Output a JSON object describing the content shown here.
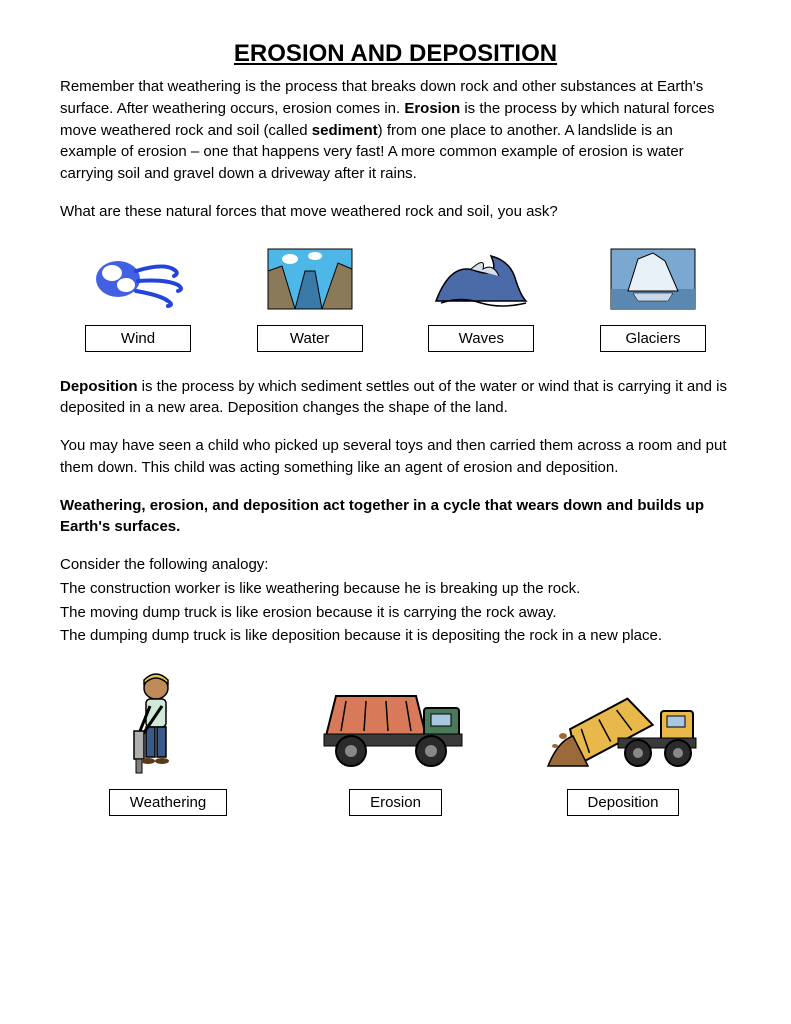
{
  "title": "EROSION AND DEPOSITION",
  "para1_html": "Remember that weathering is the process that breaks down rock and other substances at Earth's surface.  After weathering occurs, erosion comes in.  <strong>Erosion</strong> is the process by which natural forces move weathered rock and soil (called <strong>sediment</strong>) from one place to another.  A landslide is an example of erosion – one that happens very fast!  A more common example of erosion is water carrying soil and gravel down a driveway after it rains.",
  "para2": "What are these natural forces that move weathered rock and soil, you ask?",
  "forces": [
    {
      "label": "Wind",
      "icon": "wind"
    },
    {
      "label": "Water",
      "icon": "water"
    },
    {
      "label": "Waves",
      "icon": "waves"
    },
    {
      "label": "Glaciers",
      "icon": "glaciers"
    }
  ],
  "para3_html": "<strong>Deposition</strong> is the process by which sediment settles out of the water or wind that is carrying it and is deposited in a new area.  Deposition changes the shape of the land.",
  "para4": "You may have seen a child who picked up several toys and then carried them across a room and put them down.  This child was acting something like an agent of erosion and deposition.",
  "para5_html": "<strong>Weathering, erosion, and deposition act together in a cycle that wears down and builds up Earth's surfaces.</strong>",
  "para6": "Consider the following analogy:",
  "para7": "The construction worker is like weathering because he is breaking up the rock.",
  "para8": "The moving dump truck is like erosion because it is carrying the rock away.",
  "para9": "The dumping dump truck is like deposition because it is depositing the rock in a new place.",
  "analogy": [
    {
      "label": "Weathering",
      "icon": "worker"
    },
    {
      "label": "Erosion",
      "icon": "truck-moving"
    },
    {
      "label": "Deposition",
      "icon": "truck-dumping"
    }
  ],
  "colors": {
    "text": "#000000",
    "bg": "#ffffff",
    "wind_blue": "#2244dd",
    "water_sky": "#4db8e8",
    "water_cliff": "#8a7a5a",
    "water_river": "#3a7aa8",
    "wave_blue": "#4a6aa8",
    "wave_foam": "#d8e0e8",
    "glacier_sky": "#7aa8d0",
    "glacier_ice": "#e8f0f8",
    "glacier_water": "#5a88b0",
    "worker_skin": "#c08a5a",
    "worker_shirt": "#d0e8d8",
    "worker_pants": "#3a5a8a",
    "worker_hat": "#e8c84a",
    "truck1_body": "#d87a5a",
    "truck1_cab": "#4a7a5a",
    "truck1_wheel": "#2a2a2a",
    "truck2_body": "#e8b84a",
    "truck2_dirt": "#9a6a3a"
  }
}
